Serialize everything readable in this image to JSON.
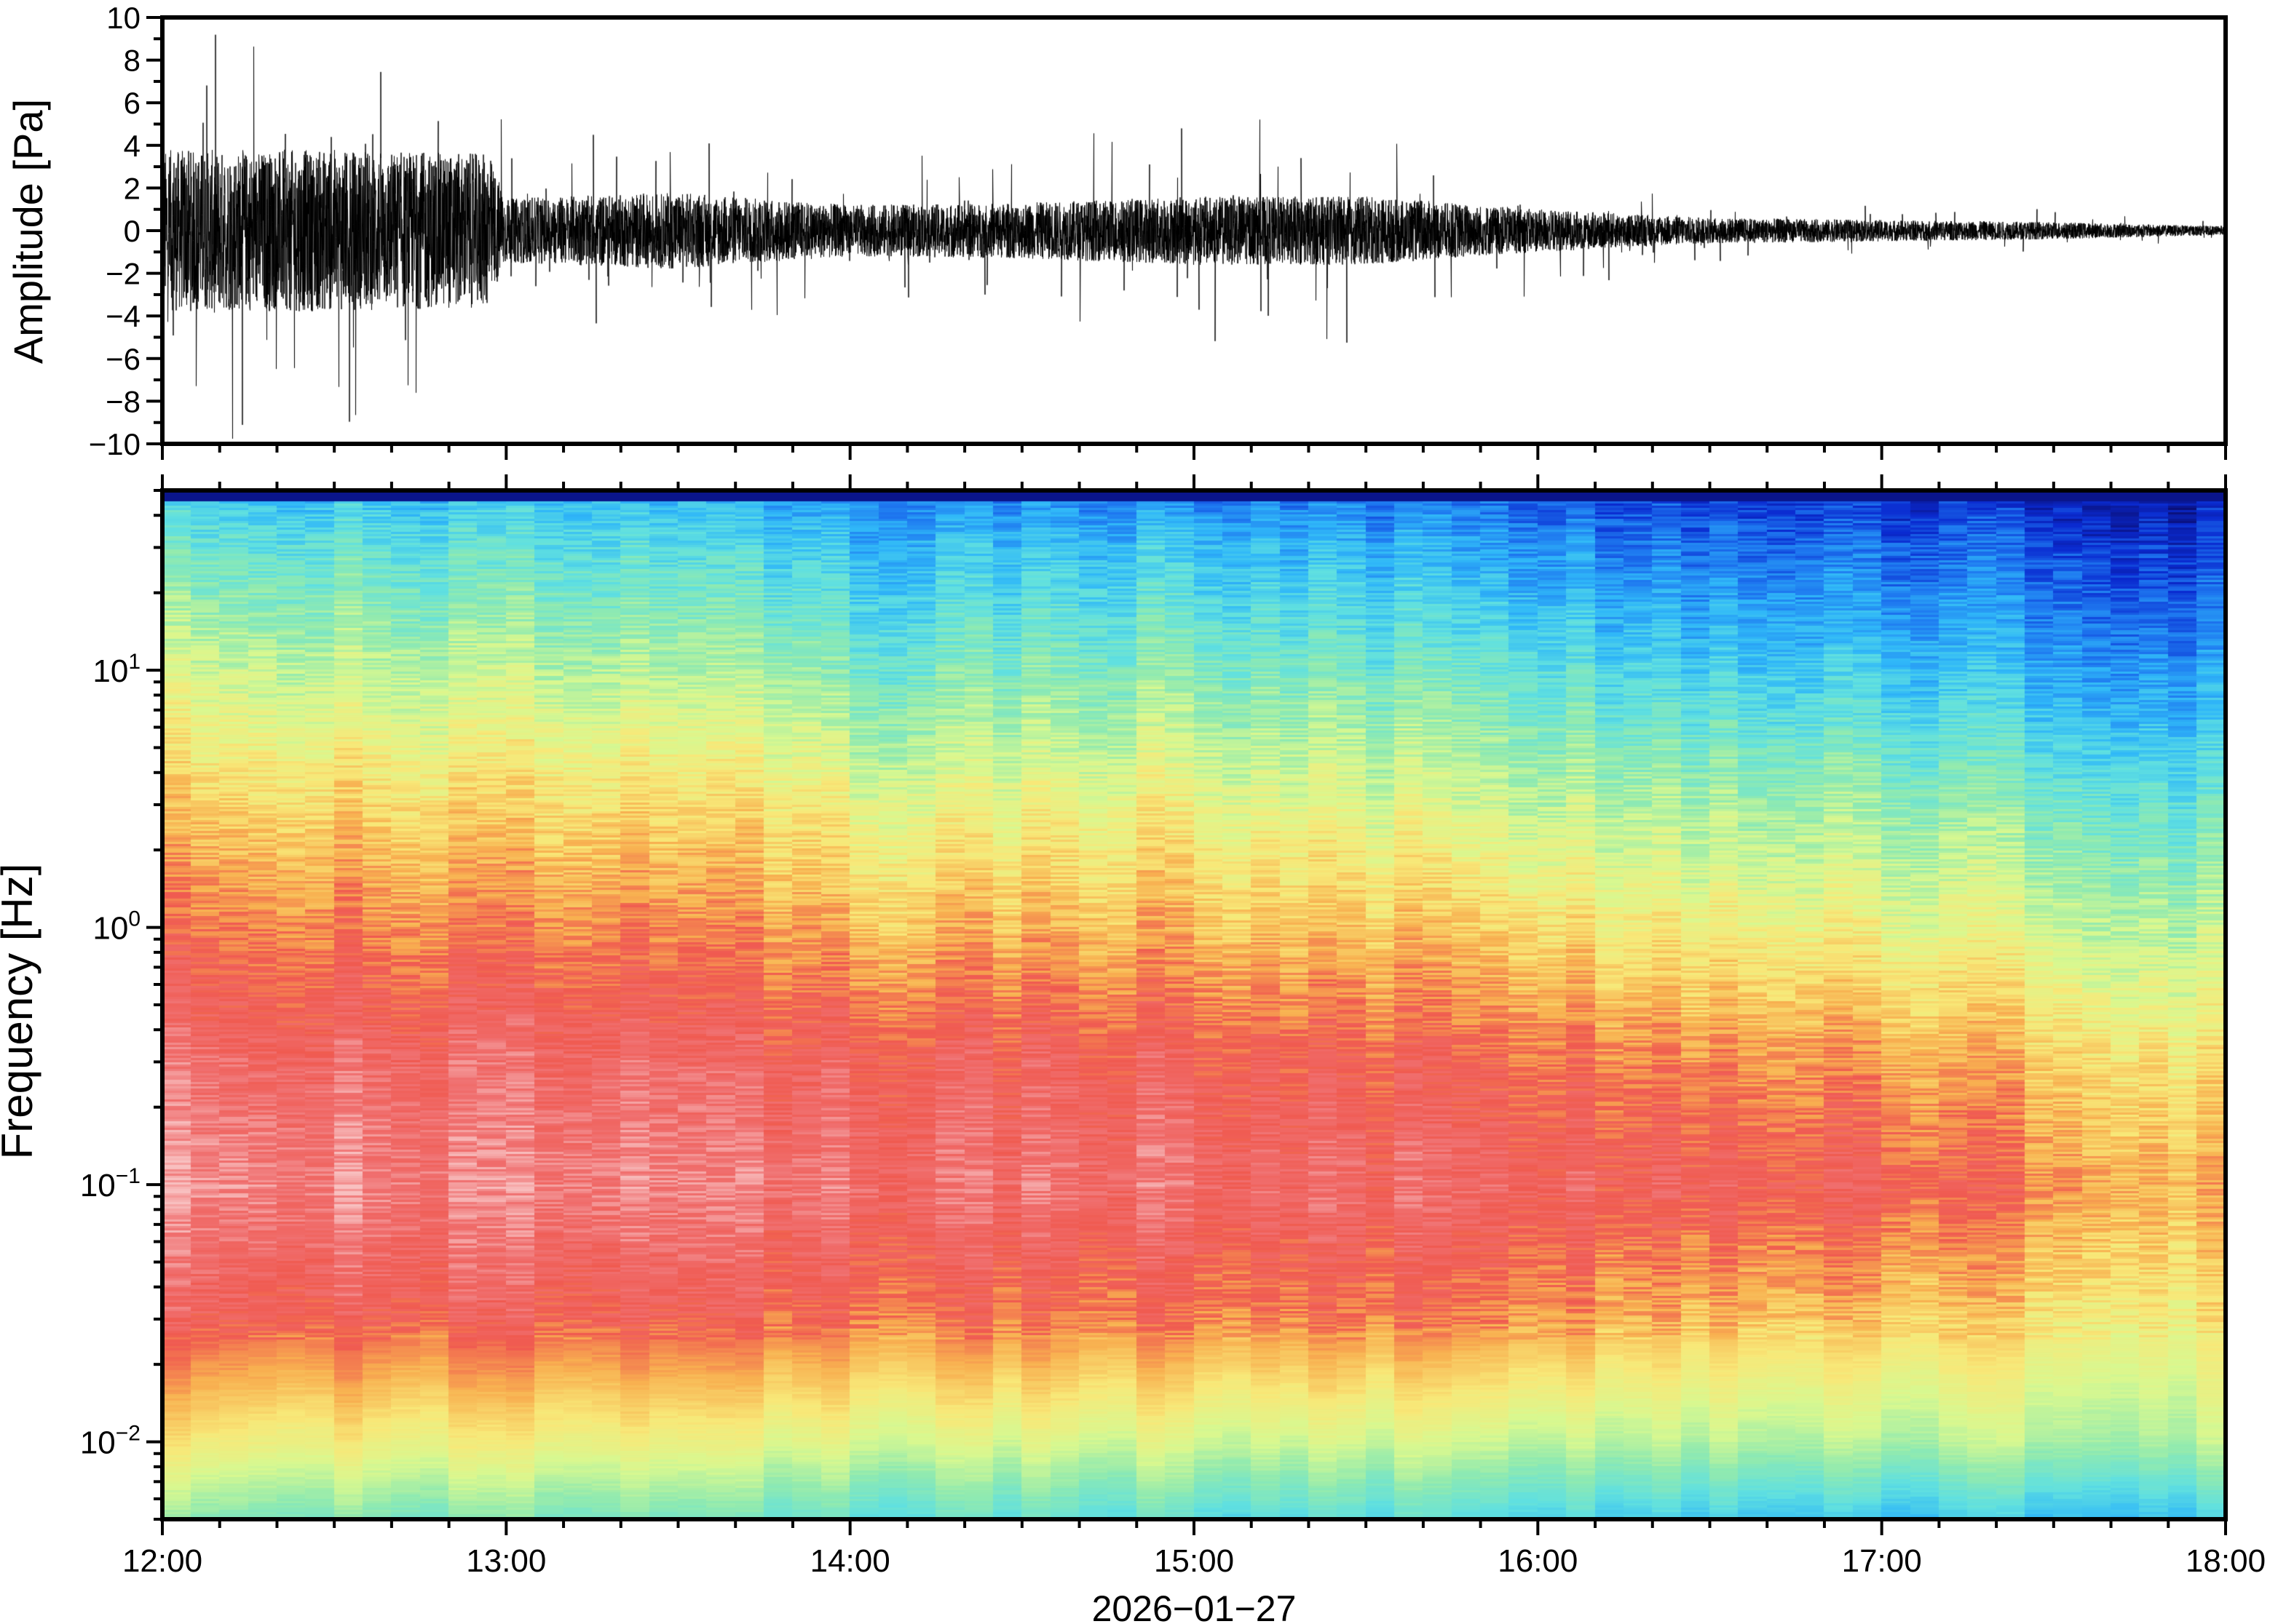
{
  "chart_data": [
    {
      "type": "line",
      "title": "",
      "ylabel": "Amplitude [Pa]",
      "ylim": [
        -10,
        10
      ],
      "yticks": [
        "10",
        "8",
        "6",
        "4",
        "2",
        "0",
        "−2",
        "−4",
        "−6",
        "−8",
        "−10"
      ],
      "ytick_values": [
        10,
        8,
        6,
        4,
        2,
        0,
        -2,
        -4,
        -6,
        -8,
        -10
      ],
      "xlim_hours": [
        12,
        18
      ],
      "envelope": {
        "time_hours": [
          12.0,
          12.5,
          12.95,
          13.0,
          13.5,
          14.0,
          14.5,
          15.0,
          15.5,
          16.0,
          16.5,
          17.0,
          17.5,
          18.0
        ],
        "typical_amplitude_pa": [
          3.8,
          3.8,
          3.6,
          1.5,
          1.8,
          1.2,
          1.3,
          1.6,
          1.6,
          1.0,
          0.6,
          0.5,
          0.4,
          0.2
        ],
        "peak_amplitude_pa": [
          10,
          10,
          9,
          4.5,
          5,
          3.5,
          4,
          5.5,
          5.5,
          3,
          1.5,
          1.2,
          1,
          0.4
        ]
      },
      "series_color": "#000000"
    },
    {
      "type": "heatmap",
      "ylabel": "Frequency [Hz]",
      "yscale": "log",
      "ylim": [
        0.005,
        50
      ],
      "yticks": [
        {
          "base": "10",
          "exp": "1",
          "value": 10
        },
        {
          "base": "10",
          "exp": "0",
          "value": 1
        },
        {
          "base": "10",
          "exp": "−1",
          "value": 0.1
        },
        {
          "base": "10",
          "exp": "−2",
          "value": 0.01
        }
      ],
      "xlabel": "2026−01−27",
      "xticks": [
        "12:00",
        "13:00",
        "14:00",
        "15:00",
        "16:00",
        "17:00",
        "18:00"
      ],
      "xlim_hours": [
        12,
        18
      ],
      "column_minutes": 5,
      "relative_power": {
        "note_levels": "0 = dark blue (low) ... 1 = pink (high)",
        "time_hours": [
          12,
          13,
          13.85,
          14,
          15,
          16,
          16.4,
          17,
          18
        ],
        "log10_freq": [
          -2.3,
          -2.0,
          -1.5,
          -1.0,
          -0.5,
          0.0,
          0.5,
          1.0,
          1.5,
          1.7
        ],
        "values": [
          [
            0.45,
            0.63,
            0.86,
            0.96,
            0.9,
            0.8,
            0.68,
            0.55,
            0.4,
            0.3
          ],
          [
            0.42,
            0.6,
            0.84,
            0.93,
            0.88,
            0.77,
            0.65,
            0.51,
            0.36,
            0.28
          ],
          [
            0.4,
            0.58,
            0.83,
            0.92,
            0.87,
            0.76,
            0.64,
            0.49,
            0.33,
            0.25
          ],
          [
            0.37,
            0.55,
            0.8,
            0.9,
            0.85,
            0.7,
            0.57,
            0.41,
            0.27,
            0.19
          ],
          [
            0.37,
            0.55,
            0.8,
            0.9,
            0.85,
            0.72,
            0.6,
            0.45,
            0.3,
            0.2
          ],
          [
            0.35,
            0.53,
            0.78,
            0.88,
            0.81,
            0.67,
            0.53,
            0.39,
            0.23,
            0.16
          ],
          [
            0.32,
            0.51,
            0.72,
            0.86,
            0.77,
            0.62,
            0.49,
            0.33,
            0.18,
            0.11
          ],
          [
            0.3,
            0.5,
            0.7,
            0.85,
            0.75,
            0.6,
            0.47,
            0.31,
            0.17,
            0.09
          ],
          [
            0.3,
            0.5,
            0.62,
            0.7,
            0.62,
            0.5,
            0.37,
            0.22,
            0.1,
            0.04
          ]
        ]
      },
      "colormap": [
        "#0a0f78",
        "#0a2ad0",
        "#1e78f0",
        "#30b8f8",
        "#60e0e0",
        "#90eab0",
        "#d8f890",
        "#f8e878",
        "#f8b050",
        "#f05a50",
        "#f07070",
        "#f8c0c0"
      ]
    }
  ]
}
